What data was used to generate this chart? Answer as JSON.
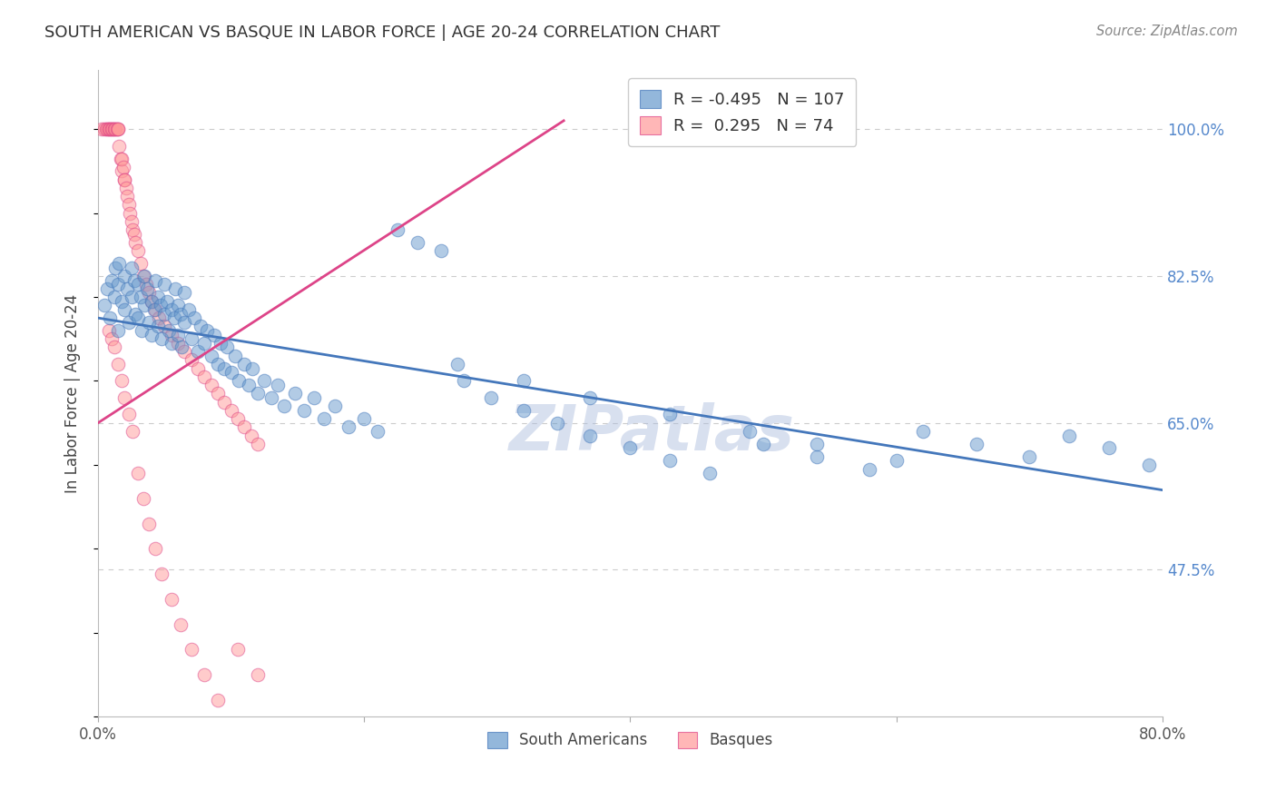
{
  "title": "SOUTH AMERICAN VS BASQUE IN LABOR FORCE | AGE 20-24 CORRELATION CHART",
  "source": "Source: ZipAtlas.com",
  "ylabel": "In Labor Force | Age 20-24",
  "xlim": [
    0.0,
    0.8
  ],
  "ylim": [
    0.3,
    1.07
  ],
  "yticks": [
    0.475,
    0.65,
    0.825,
    1.0
  ],
  "ytick_labels": [
    "47.5%",
    "65.0%",
    "82.5%",
    "100.0%"
  ],
  "xticks": [
    0.0,
    0.2,
    0.4,
    0.6,
    0.8
  ],
  "xtick_labels": [
    "0.0%",
    "",
    "",
    "",
    "80.0%"
  ],
  "blue_R": -0.495,
  "blue_N": 107,
  "pink_R": 0.295,
  "pink_N": 74,
  "blue_color": "#6699CC",
  "pink_color": "#FF9999",
  "blue_line_color": "#4477BB",
  "pink_line_color": "#DD4488",
  "watermark": "ZIPatlas",
  "watermark_color": "#AABBDD",
  "background_color": "#FFFFFF",
  "grid_color": "#CCCCCC",
  "title_color": "#333333",
  "tick_label_color_right": "#5588CC",
  "blue_scatter_x": [
    0.005,
    0.007,
    0.009,
    0.01,
    0.012,
    0.013,
    0.015,
    0.015,
    0.016,
    0.018,
    0.02,
    0.02,
    0.022,
    0.023,
    0.025,
    0.025,
    0.027,
    0.028,
    0.03,
    0.03,
    0.032,
    0.033,
    0.035,
    0.035,
    0.037,
    0.038,
    0.04,
    0.04,
    0.042,
    0.043,
    0.045,
    0.045,
    0.047,
    0.048,
    0.05,
    0.05,
    0.052,
    0.053,
    0.055,
    0.055,
    0.057,
    0.058,
    0.06,
    0.06,
    0.062,
    0.063,
    0.065,
    0.065,
    0.068,
    0.07,
    0.072,
    0.075,
    0.077,
    0.08,
    0.082,
    0.085,
    0.087,
    0.09,
    0.092,
    0.095,
    0.097,
    0.1,
    0.103,
    0.106,
    0.11,
    0.113,
    0.116,
    0.12,
    0.125,
    0.13,
    0.135,
    0.14,
    0.148,
    0.155,
    0.162,
    0.17,
    0.178,
    0.188,
    0.2,
    0.21,
    0.225,
    0.24,
    0.258,
    0.275,
    0.295,
    0.32,
    0.345,
    0.37,
    0.4,
    0.43,
    0.46,
    0.5,
    0.54,
    0.58,
    0.62,
    0.66,
    0.7,
    0.73,
    0.76,
    0.79,
    0.27,
    0.32,
    0.37,
    0.43,
    0.49,
    0.54,
    0.6
  ],
  "blue_scatter_y": [
    0.79,
    0.81,
    0.775,
    0.82,
    0.8,
    0.835,
    0.815,
    0.76,
    0.84,
    0.795,
    0.825,
    0.785,
    0.81,
    0.77,
    0.8,
    0.835,
    0.82,
    0.78,
    0.815,
    0.775,
    0.8,
    0.76,
    0.79,
    0.825,
    0.81,
    0.77,
    0.795,
    0.755,
    0.785,
    0.82,
    0.8,
    0.765,
    0.79,
    0.75,
    0.78,
    0.815,
    0.795,
    0.76,
    0.785,
    0.745,
    0.775,
    0.81,
    0.79,
    0.755,
    0.78,
    0.74,
    0.77,
    0.805,
    0.785,
    0.75,
    0.775,
    0.735,
    0.765,
    0.745,
    0.76,
    0.73,
    0.755,
    0.72,
    0.745,
    0.715,
    0.74,
    0.71,
    0.73,
    0.7,
    0.72,
    0.695,
    0.715,
    0.685,
    0.7,
    0.68,
    0.695,
    0.67,
    0.685,
    0.665,
    0.68,
    0.655,
    0.67,
    0.645,
    0.655,
    0.64,
    0.88,
    0.865,
    0.855,
    0.7,
    0.68,
    0.665,
    0.65,
    0.635,
    0.62,
    0.605,
    0.59,
    0.625,
    0.61,
    0.595,
    0.64,
    0.625,
    0.61,
    0.635,
    0.62,
    0.6,
    0.72,
    0.7,
    0.68,
    0.66,
    0.64,
    0.625,
    0.605
  ],
  "pink_scatter_x": [
    0.003,
    0.005,
    0.006,
    0.007,
    0.008,
    0.008,
    0.009,
    0.01,
    0.01,
    0.011,
    0.012,
    0.012,
    0.013,
    0.014,
    0.015,
    0.015,
    0.016,
    0.017,
    0.018,
    0.018,
    0.019,
    0.02,
    0.02,
    0.021,
    0.022,
    0.023,
    0.024,
    0.025,
    0.026,
    0.027,
    0.028,
    0.03,
    0.032,
    0.034,
    0.036,
    0.038,
    0.04,
    0.043,
    0.046,
    0.05,
    0.055,
    0.06,
    0.065,
    0.07,
    0.075,
    0.08,
    0.085,
    0.09,
    0.095,
    0.1,
    0.105,
    0.11,
    0.115,
    0.12,
    0.008,
    0.01,
    0.012,
    0.015,
    0.018,
    0.02,
    0.023,
    0.026,
    0.03,
    0.034,
    0.038,
    0.043,
    0.048,
    0.055,
    0.062,
    0.07,
    0.08,
    0.09,
    0.105,
    0.12
  ],
  "pink_scatter_y": [
    1.0,
    1.0,
    1.0,
    1.0,
    1.0,
    1.0,
    1.0,
    1.0,
    1.0,
    1.0,
    1.0,
    1.0,
    1.0,
    1.0,
    1.0,
    1.0,
    0.98,
    0.965,
    0.95,
    0.965,
    0.955,
    0.94,
    0.94,
    0.93,
    0.92,
    0.91,
    0.9,
    0.89,
    0.88,
    0.875,
    0.865,
    0.855,
    0.84,
    0.825,
    0.815,
    0.805,
    0.795,
    0.785,
    0.775,
    0.765,
    0.755,
    0.745,
    0.735,
    0.725,
    0.715,
    0.705,
    0.695,
    0.685,
    0.675,
    0.665,
    0.655,
    0.645,
    0.635,
    0.625,
    0.76,
    0.75,
    0.74,
    0.72,
    0.7,
    0.68,
    0.66,
    0.64,
    0.59,
    0.56,
    0.53,
    0.5,
    0.47,
    0.44,
    0.41,
    0.38,
    0.35,
    0.32,
    0.38,
    0.35
  ],
  "blue_line_x": [
    0.0,
    0.8
  ],
  "blue_line_y": [
    0.775,
    0.57
  ],
  "pink_line_x": [
    0.0,
    0.35
  ],
  "pink_line_y": [
    0.65,
    1.01
  ]
}
